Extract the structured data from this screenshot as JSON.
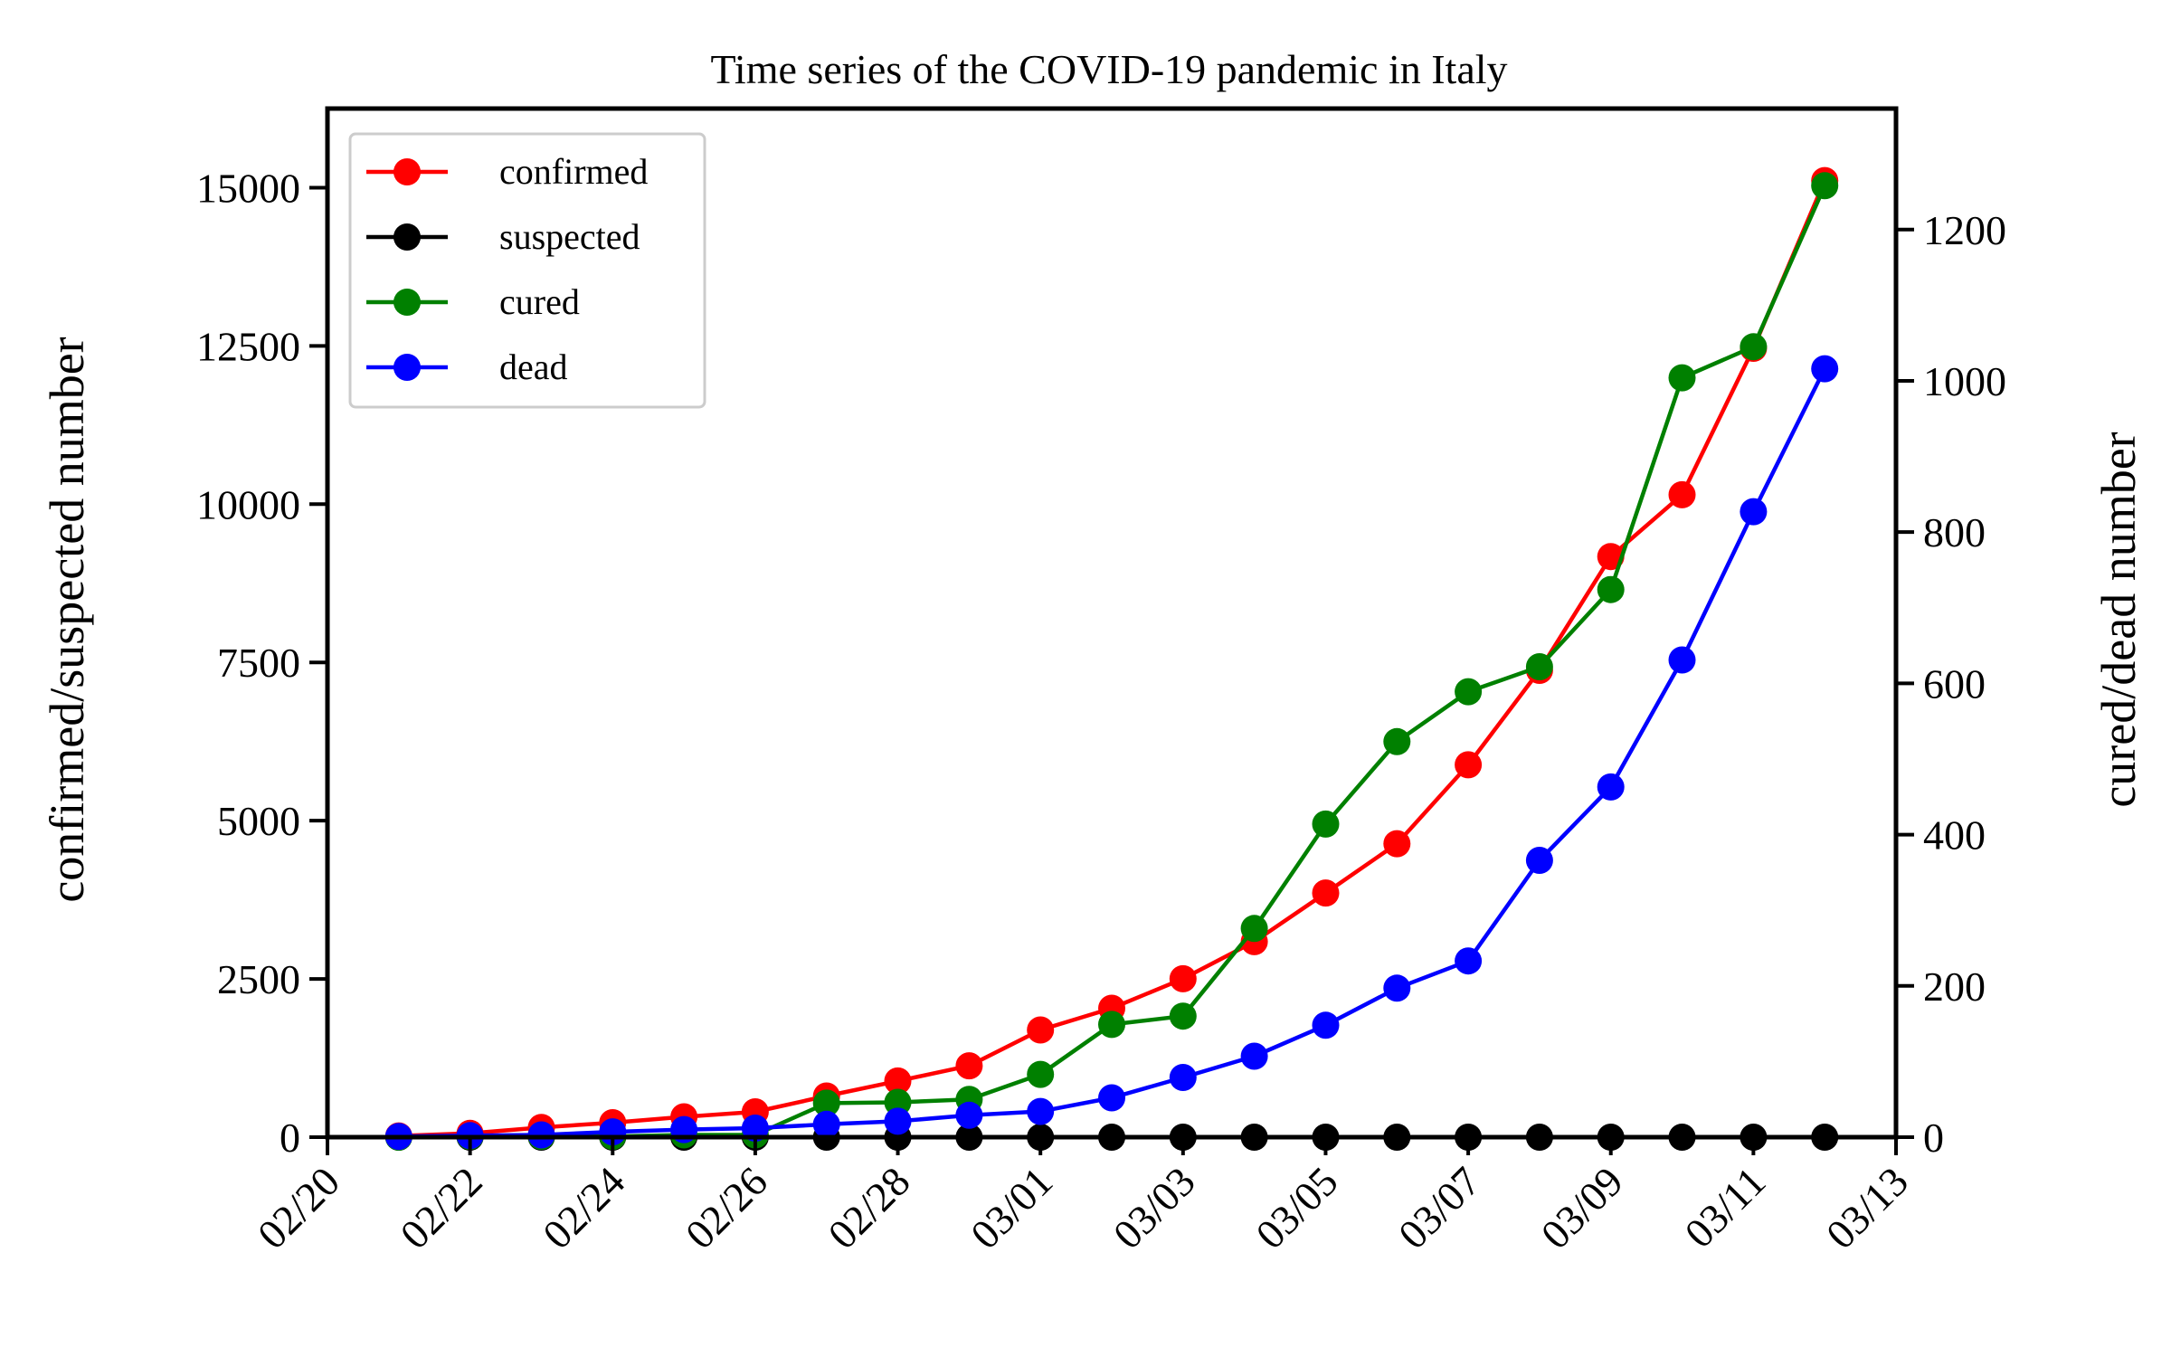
{
  "chart_data": {
    "type": "line",
    "title": "Time series of the COVID-19 pandemic in Italy",
    "ylabel_left": "confirmed/suspected number",
    "ylabel_right": "cured/dead number",
    "x_ticks": [
      "02/20",
      "02/22",
      "02/24",
      "02/26",
      "02/28",
      "03/01",
      "03/03",
      "03/05",
      "03/07",
      "03/09",
      "03/11",
      "03/13"
    ],
    "x_dates": [
      "02/21",
      "02/22",
      "02/23",
      "02/24",
      "02/25",
      "02/26",
      "02/27",
      "02/28",
      "02/29",
      "03/01",
      "03/02",
      "03/03",
      "03/04",
      "03/05",
      "03/06",
      "03/07",
      "03/08",
      "03/09",
      "03/10",
      "03/11",
      "03/12"
    ],
    "ylim_left": [
      0,
      16250
    ],
    "ylim_right": [
      0,
      1360
    ],
    "yticks_left": [
      0,
      2500,
      5000,
      7500,
      10000,
      12500,
      15000
    ],
    "yticks_right": [
      0,
      200,
      400,
      600,
      800,
      1000,
      1200
    ],
    "grid": false,
    "legend_position": "top-left",
    "series": [
      {
        "name": "confirmed",
        "axis": "left",
        "color": "#ff0000",
        "values": [
          20,
          62,
          155,
          229,
          322,
          400,
          650,
          888,
          1128,
          1694,
          2036,
          2502,
          3089,
          3858,
          4636,
          5883,
          7375,
          9172,
          10149,
          12462,
          15113
        ]
      },
      {
        "name": "suspected",
        "axis": "left",
        "color": "#000000",
        "values": [
          0,
          0,
          0,
          0,
          0,
          0,
          0,
          0,
          0,
          0,
          0,
          0,
          0,
          0,
          0,
          0,
          0,
          0,
          0,
          0,
          0
        ]
      },
      {
        "name": "cured",
        "axis": "right",
        "color": "#008000",
        "values": [
          0,
          1,
          1,
          1,
          3,
          3,
          45,
          46,
          50,
          83,
          149,
          160,
          276,
          414,
          523,
          589,
          622,
          724,
          1004,
          1045,
          1258
        ]
      },
      {
        "name": "dead",
        "axis": "right",
        "color": "#0000ff",
        "values": [
          1,
          2,
          3,
          7,
          10,
          12,
          17,
          21,
          29,
          34,
          52,
          79,
          107,
          148,
          197,
          233,
          366,
          463,
          631,
          827,
          1016
        ]
      }
    ]
  }
}
